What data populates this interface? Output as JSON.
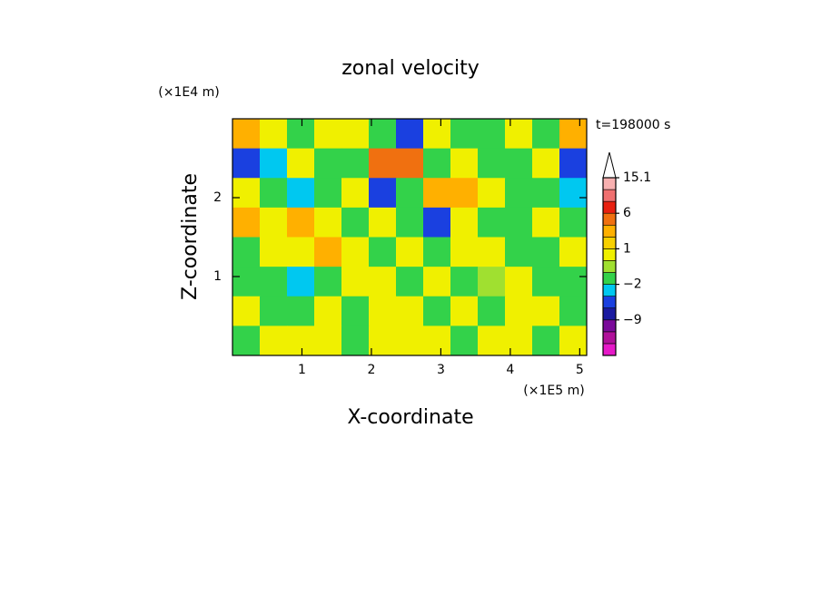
{
  "chart_data": {
    "type": "contour",
    "title": "zonal velocity",
    "xlabel": "X-coordinate",
    "ylabel": "Z-coordinate",
    "xunit": "(×1E5 m)",
    "yunit": "(×1E4 m)",
    "time_label": "t=198000 s",
    "xlim": [
      0,
      5.1
    ],
    "ylim": [
      0,
      3.0
    ],
    "xticks": [
      1,
      2,
      3,
      4,
      5
    ],
    "yticks": [
      1,
      2
    ],
    "z": [
      [
        2.5,
        0.5,
        -1.5,
        0.5,
        0.5,
        -1.5,
        -4,
        0.5,
        -1.5,
        -1.5,
        0.5,
        -1.5,
        2.5
      ],
      [
        -4,
        -2.5,
        0.5,
        -1.5,
        -1.5,
        3.5,
        3.5,
        -1.5,
        0.5,
        -1.5,
        -1.5,
        0.5,
        -4
      ],
      [
        0.5,
        -1.5,
        -2.5,
        -1.5,
        0.5,
        -4,
        -1.5,
        2.5,
        2.5,
        0.5,
        -1.5,
        -1.5,
        -2.5
      ],
      [
        2.5,
        0.5,
        2.5,
        0.5,
        -1.5,
        0.5,
        -1.5,
        -4,
        0.5,
        -1.5,
        -1.5,
        0.5,
        -1.5
      ],
      [
        -1.5,
        0.5,
        0.5,
        2.5,
        0.5,
        -1.5,
        0.5,
        -1.5,
        0.5,
        0.5,
        -1.5,
        -1.5,
        0.5
      ],
      [
        -1.5,
        -1.5,
        -2.5,
        -1.5,
        0.5,
        0.5,
        -1.5,
        0.5,
        -1.5,
        -0.5,
        0.5,
        -1.5,
        -1.5
      ],
      [
        0.5,
        -1.5,
        -1.5,
        0.5,
        -1.5,
        0.5,
        0.5,
        -1.5,
        0.5,
        -1.5,
        0.5,
        0.5,
        -1.5
      ],
      [
        -1.5,
        0.5,
        0.5,
        0.5,
        -1.5,
        0.5,
        0.5,
        0.5,
        -1.5,
        0.5,
        0.5,
        -1.5,
        0.5
      ]
    ],
    "colorbar": {
      "levels": [
        -15,
        -12,
        -9,
        -6,
        -3,
        -2,
        -1,
        0,
        1,
        2,
        3,
        6,
        9,
        12,
        15.1
      ],
      "colors": [
        "#e619c8",
        "#b0109a",
        "#7a0a9a",
        "#1a1aa0",
        "#1a40e0",
        "#00c8f0",
        "#33d24a",
        "#a0e030",
        "#f0f000",
        "#f8d000",
        "#ffb000",
        "#f07010",
        "#e82010",
        "#f07070",
        "#f8b0b0",
        "#ffffff"
      ],
      "ticks": [
        {
          "value": 15.1,
          "label": "15.1"
        },
        6,
        1,
        {
          "value": -2,
          "label": "−2"
        },
        {
          "value": -9,
          "label": "−9"
        }
      ]
    }
  }
}
